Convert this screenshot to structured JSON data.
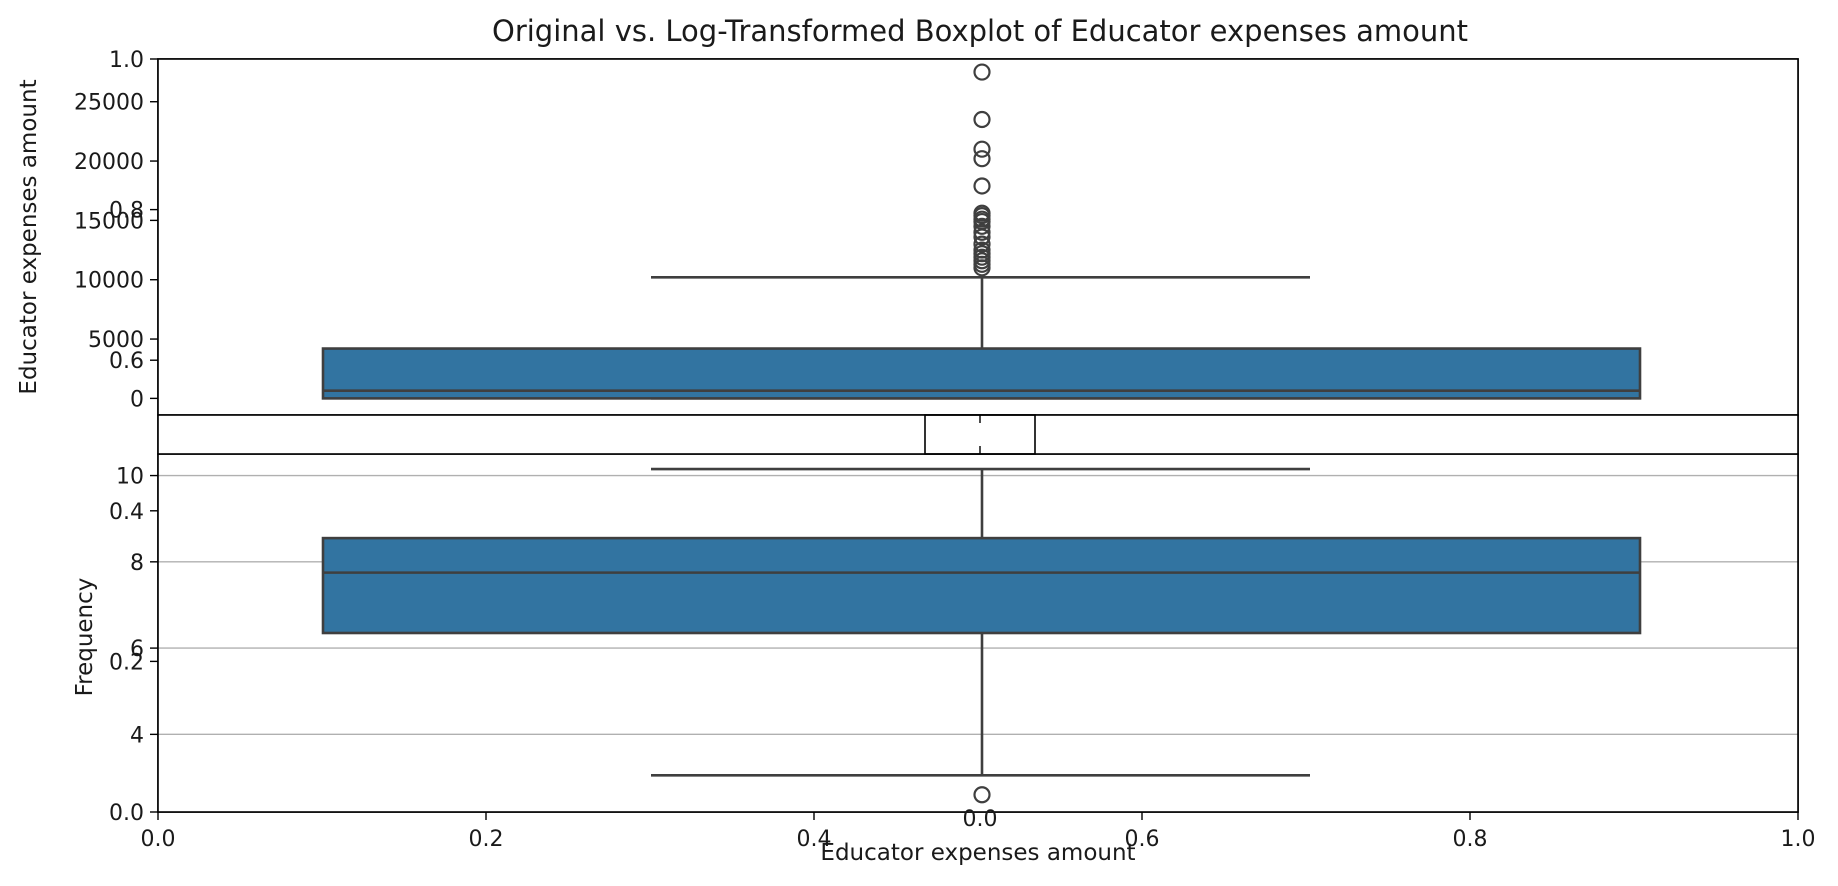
{
  "chart_data": {
    "title": "Original vs. Log-Transformed Boxplot of Educator expenses amount",
    "background_axes": {
      "xlabel": "Educator expenses amount",
      "ylabel": "Frequency",
      "x_ticks": [
        "0.0",
        "0.2",
        "0.4",
        "0.6",
        "0.8",
        "1.0"
      ],
      "y_ticks": [
        "0.0",
        "0.2",
        "0.4",
        "0.6",
        "0.8",
        "1.0"
      ]
    },
    "top_subplot": {
      "type": "boxplot",
      "ylabel": "Educator expenses amount",
      "ylim": [
        -1400,
        28600
      ],
      "y_ticks": [
        0,
        5000,
        10000,
        15000,
        20000,
        25000
      ],
      "y_tick_labels": [
        "0",
        "5000",
        "10000",
        "15000",
        "20000",
        "25000"
      ],
      "whisker_low": 0,
      "q1": 0,
      "median": 650,
      "q3": 4200,
      "whisker_high": 10200,
      "fliers": [
        27500,
        23500,
        21000,
        20200,
        17900,
        15600,
        15400,
        15100,
        14900,
        14500,
        14000,
        13600,
        13000,
        12500,
        12200,
        11900,
        11600,
        11300,
        11000
      ]
    },
    "middle_subplot": {
      "type": "boxplot",
      "x_ticks": [
        "0.0"
      ]
    },
    "bottom_subplot": {
      "type": "boxplot",
      "ylim": [
        2.2,
        10.5
      ],
      "y_ticks": [
        4,
        6,
        8,
        10
      ],
      "y_tick_labels": [
        "4",
        "6",
        "8",
        "10"
      ],
      "grid": true,
      "whisker_low": 3.05,
      "q1": 6.35,
      "median": 7.75,
      "q3": 8.55,
      "whisker_high": 10.15,
      "fliers": [
        2.6
      ]
    },
    "colors": {
      "box_fill": "#3274a1",
      "line": "#3f3f3f",
      "grid": "#b0b0b0"
    }
  }
}
